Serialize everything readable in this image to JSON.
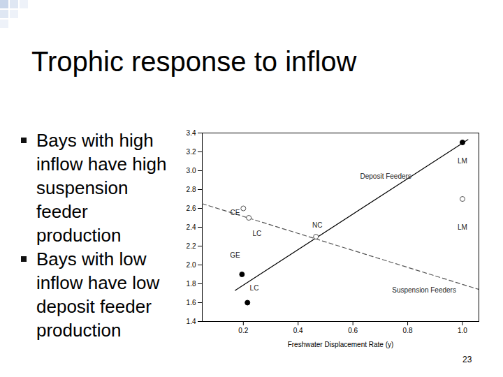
{
  "slide": {
    "title": "Trophic response to inflow",
    "bullets": [
      "Bays with high inflow have high suspension feeder production",
      "Bays with low inflow have low deposit feeder production"
    ],
    "page_number": "23"
  },
  "chart_data": {
    "type": "scatter",
    "xlabel": "Freshwater Displacement Rate (y)",
    "xlim": [
      0.05,
      1.06
    ],
    "xticks": [
      0.2,
      0.4,
      0.6,
      0.8,
      {
        "value": 1,
        "label": "1.0"
      }
    ],
    "ylim": [
      1.4,
      3.4
    ],
    "yticks": [
      1.4,
      1.6,
      1.8,
      {
        "value": 2,
        "label": "2.0"
      },
      2.2,
      2.4,
      2.6,
      2.8,
      {
        "value": 3,
        "label": "3.0"
      },
      3.2,
      3.4
    ],
    "grid": false,
    "series": [
      {
        "name": "Deposit Feeders",
        "color": "#000000",
        "marker": "filled",
        "line_style": "solid",
        "x": [
          0.195,
          0.215,
          1.0
        ],
        "values": [
          1.9,
          1.6,
          3.3
        ],
        "fit_x": [
          0.17,
          1.02
        ],
        "fit_values": [
          1.73,
          3.33
        ],
        "label_at": [
          0.72,
          2.94
        ]
      },
      {
        "name": "Suspension Feeders",
        "color": "#555555",
        "marker": "open",
        "line_style": "dashed",
        "x": [
          0.2,
          0.22,
          0.465,
          1.0
        ],
        "values": [
          2.6,
          2.5,
          2.3,
          2.7
        ],
        "fit_x": [
          0.05,
          1.06
        ],
        "fit_values": [
          2.65,
          1.74
        ],
        "label_at": [
          0.86,
          1.73
        ]
      }
    ],
    "annotations": [
      {
        "text": "LM",
        "x": 1.0,
        "y": 3.1
      },
      {
        "text": "LM",
        "x": 1.0,
        "y": 2.4
      },
      {
        "text": "CE",
        "x": 0.17,
        "y": 2.55
      },
      {
        "text": "LC",
        "x": 0.25,
        "y": 2.33
      },
      {
        "text": "NC",
        "x": 0.47,
        "y": 2.42
      },
      {
        "text": "GE",
        "x": 0.17,
        "y": 2.1
      },
      {
        "text": "LC",
        "x": 0.24,
        "y": 1.75
      }
    ]
  }
}
